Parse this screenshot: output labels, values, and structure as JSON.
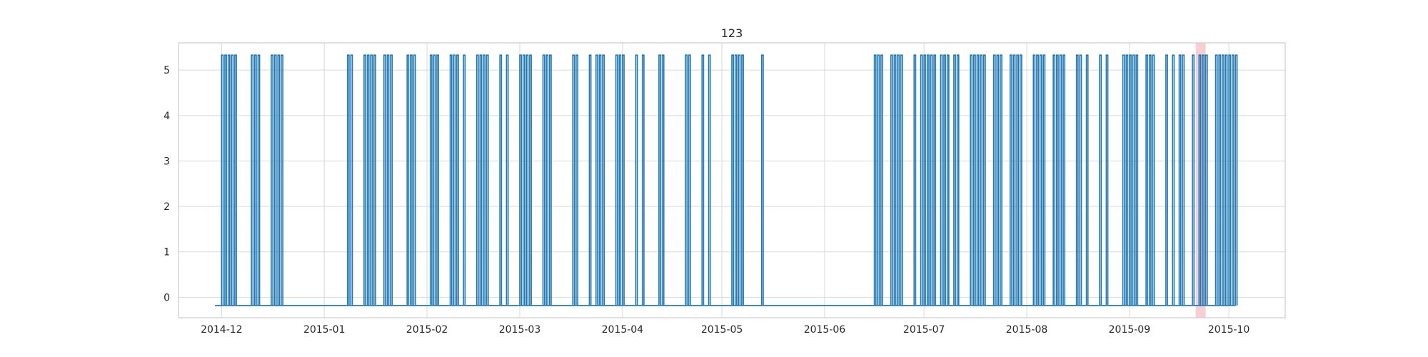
{
  "chart_data": {
    "type": "line",
    "title": "123",
    "xlabel": "",
    "ylabel": "",
    "x_tick_labels": [
      "2014-12",
      "2015-01",
      "2015-02",
      "2015-03",
      "2015-04",
      "2015-05",
      "2015-06",
      "2015-07",
      "2015-08",
      "2015-09",
      "2015-10"
    ],
    "x_tick_dates": [
      "2014-12-01",
      "2015-01-01",
      "2015-02-01",
      "2015-03-01",
      "2015-04-01",
      "2015-05-01",
      "2015-06-01",
      "2015-07-01",
      "2015-08-01",
      "2015-09-01",
      "2015-10-01"
    ],
    "y_ticks": [
      0,
      1,
      2,
      3,
      4,
      5
    ],
    "xlim": [
      "2014-11-18",
      "2015-10-18"
    ],
    "ylim": [
      -0.45,
      5.6
    ],
    "grid": true,
    "colors": {
      "series": "#1f77b4",
      "grid": "#d9d9d9",
      "frame": "#cccccc",
      "highlight": "#f4c7cc",
      "text": "#262626"
    },
    "highlight_span": [
      "2015-09-21",
      "2015-09-24"
    ],
    "series": [
      {
        "baseline": -0.18,
        "peak": 5.33,
        "x_range": [
          "2014-11-29",
          "2015-10-03"
        ],
        "spike_dates": [
          "2014-12-01",
          "2014-12-02",
          "2014-12-03",
          "2014-12-04",
          "2014-12-05",
          "2014-12-10",
          "2014-12-11",
          "2014-12-12",
          "2014-12-16",
          "2014-12-17",
          "2014-12-18",
          "2014-12-19",
          "2015-01-08",
          "2015-01-09",
          "2015-01-13",
          "2015-01-14",
          "2015-01-15",
          "2015-01-16",
          "2015-01-19",
          "2015-01-20",
          "2015-01-21",
          "2015-01-26",
          "2015-01-27",
          "2015-01-28",
          "2015-02-02",
          "2015-02-03",
          "2015-02-04",
          "2015-02-08",
          "2015-02-09",
          "2015-02-10",
          "2015-02-12",
          "2015-02-16",
          "2015-02-17",
          "2015-02-18",
          "2015-02-19",
          "2015-02-23",
          "2015-02-25",
          "2015-03-01",
          "2015-03-02",
          "2015-03-03",
          "2015-03-04",
          "2015-03-08",
          "2015-03-09",
          "2015-03-10",
          "2015-03-17",
          "2015-03-18",
          "2015-03-22",
          "2015-03-24",
          "2015-03-25",
          "2015-03-26",
          "2015-03-30",
          "2015-03-31",
          "2015-04-01",
          "2015-04-05",
          "2015-04-07",
          "2015-04-12",
          "2015-04-13",
          "2015-04-20",
          "2015-04-21",
          "2015-04-25",
          "2015-04-27",
          "2015-05-04",
          "2015-05-05",
          "2015-05-06",
          "2015-05-07",
          "2015-05-13",
          "2015-06-16",
          "2015-06-17",
          "2015-06-18",
          "2015-06-21",
          "2015-06-22",
          "2015-06-23",
          "2015-06-24",
          "2015-06-28",
          "2015-06-30",
          "2015-07-01",
          "2015-07-02",
          "2015-07-03",
          "2015-07-04",
          "2015-07-06",
          "2015-07-07",
          "2015-07-08",
          "2015-07-10",
          "2015-07-11",
          "2015-07-15",
          "2015-07-16",
          "2015-07-17",
          "2015-07-18",
          "2015-07-19",
          "2015-07-22",
          "2015-07-23",
          "2015-07-24",
          "2015-07-27",
          "2015-07-28",
          "2015-07-29",
          "2015-07-30",
          "2015-08-03",
          "2015-08-04",
          "2015-08-05",
          "2015-08-06",
          "2015-08-09",
          "2015-08-10",
          "2015-08-11",
          "2015-08-12",
          "2015-08-16",
          "2015-08-17",
          "2015-08-19",
          "2015-08-23",
          "2015-08-25",
          "2015-08-30",
          "2015-08-31",
          "2015-09-01",
          "2015-09-02",
          "2015-09-03",
          "2015-09-06",
          "2015-09-07",
          "2015-09-08",
          "2015-09-12",
          "2015-09-14",
          "2015-09-16",
          "2015-09-17",
          "2015-09-20",
          "2015-09-22",
          "2015-09-23",
          "2015-09-24",
          "2015-09-27",
          "2015-09-28",
          "2015-09-29",
          "2015-09-30",
          "2015-10-01",
          "2015-10-02",
          "2015-10-03"
        ]
      }
    ]
  }
}
